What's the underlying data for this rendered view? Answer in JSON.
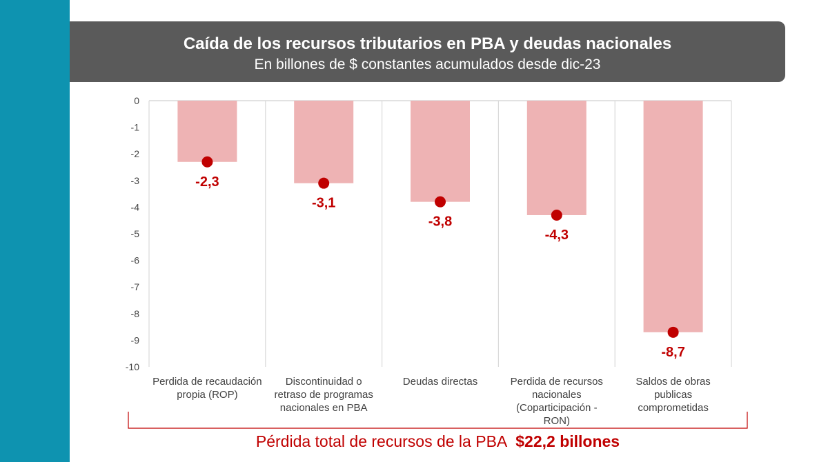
{
  "header": {
    "title": "Caída de los recursos tributarios en PBA y deudas nacionales",
    "subtitle": "En billones de $ constantes acumulados desde dic-23"
  },
  "chart_data": {
    "type": "bar",
    "title": "Caída de los recursos tributarios en PBA y deudas nacionales",
    "subtitle": "En billones de $ constantes acumulados desde dic-23",
    "categories": [
      "Perdida de recaudación\npropia (ROP)",
      "Discontinuidad o\nretraso de programas\nnacionales en PBA",
      "Deudas directas",
      "Perdida de recursos\nnacionales\n(Coparticipación - RON)",
      "Saldos de obras\npublicas\ncomprometidas"
    ],
    "values": [
      -2.3,
      -3.1,
      -3.8,
      -4.3,
      -8.7
    ],
    "value_labels": [
      "-2,3",
      "-3,1",
      "-3,8",
      "-4,3",
      "-8,7"
    ],
    "ylim": [
      -10,
      0
    ],
    "yticks": [
      "0",
      "-1",
      "-2",
      "-3",
      "-4",
      "-5",
      "-6",
      "-7",
      "-8",
      "-9",
      "-10"
    ],
    "xlabel": "",
    "ylabel": "",
    "grid": "vertical category dividers",
    "colors": {
      "bar": "#eeb3b4",
      "marker": "#c00000",
      "label": "#c00000",
      "grid": "#d9d9d9"
    }
  },
  "footer": {
    "total_label": "Pérdida total de recursos de la PBA",
    "total_value": "$22,2 billones"
  }
}
